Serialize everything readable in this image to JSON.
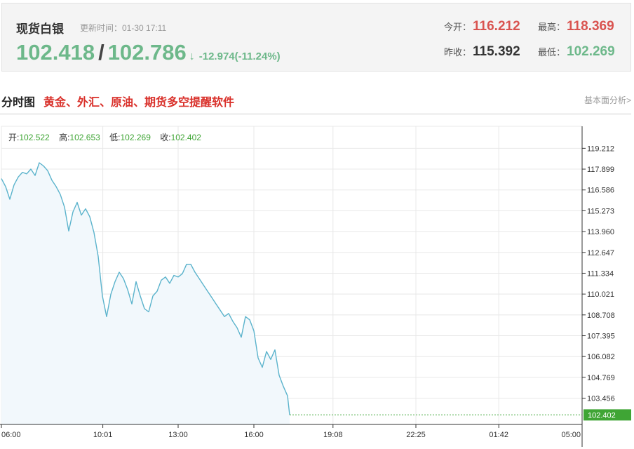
{
  "quote": {
    "name": "现货白银",
    "update_time": "更新时间：01-30 17:11",
    "bid": "102.418",
    "separator": "/",
    "ask": "102.786",
    "arrow": "↓",
    "change": "-12.974(-11.24%)",
    "open_label": "今开：",
    "open": "116.212",
    "high_label": "最高：",
    "high": "118.369",
    "prev_close_label": "昨收：",
    "prev_close": "115.392",
    "low_label": "最低：",
    "low": "102.269"
  },
  "section": {
    "title": "分时图",
    "promo": "黄金、外汇、原油、期货多空提醒软件",
    "analysis_link": "基本面分析>"
  },
  "colors": {
    "up": "#d9534f",
    "down": "#6db88a",
    "line": "#5bb3cc",
    "area": "#f2f8fc",
    "last_price_box": "#3fa535",
    "grid": "#e8e8e8"
  },
  "chart_data": {
    "type": "line",
    "ohlc": {
      "open_label": "开:",
      "open": "102.522",
      "high_label": "高:",
      "high": "102.653",
      "low_label": "低:",
      "low": "102.269",
      "close_label": "收:",
      "close": "102.402"
    },
    "x_ticks": [
      "06:00",
      "10:01",
      "13:00",
      "16:00",
      "19:08",
      "22:25",
      "01:42",
      "05:00"
    ],
    "y_ticks": [
      119.212,
      117.899,
      116.586,
      115.273,
      113.96,
      112.647,
      111.334,
      110.021,
      108.708,
      107.395,
      106.082,
      104.769,
      103.456
    ],
    "ylim": [
      101.8,
      120.6
    ],
    "last_price": "102.402",
    "grid": true,
    "series": [
      {
        "x": [
          "06:00",
          "06:10",
          "06:20",
          "06:30",
          "06:40",
          "06:50",
          "07:00",
          "07:10",
          "07:20",
          "07:30",
          "07:40",
          "07:50",
          "08:00",
          "08:10",
          "08:20",
          "08:30",
          "08:40",
          "08:50",
          "09:00",
          "09:10",
          "09:20",
          "09:30",
          "09:40",
          "09:50",
          "10:00",
          "10:10",
          "10:20",
          "10:30",
          "10:40",
          "10:50",
          "11:00",
          "11:10",
          "11:20",
          "11:30",
          "11:40",
          "11:50",
          "12:00",
          "12:10",
          "12:20",
          "12:30",
          "12:40",
          "12:50",
          "13:00",
          "13:10",
          "13:20",
          "13:30",
          "13:40",
          "13:50",
          "14:00",
          "14:10",
          "14:20",
          "14:30",
          "14:40",
          "14:50",
          "15:00",
          "15:10",
          "15:20",
          "15:30",
          "15:40",
          "15:50",
          "16:00",
          "16:10",
          "16:20",
          "16:30",
          "16:40",
          "16:50",
          "17:00",
          "17:10",
          "17:20",
          "17:25"
        ],
        "values": [
          117.3,
          116.8,
          116.0,
          116.9,
          117.4,
          117.7,
          117.6,
          117.9,
          117.5,
          118.3,
          118.1,
          117.8,
          117.2,
          116.8,
          116.3,
          115.5,
          114.0,
          115.2,
          115.8,
          115.0,
          115.4,
          114.9,
          113.9,
          112.4,
          109.9,
          108.6,
          110.0,
          110.8,
          111.4,
          111.0,
          110.3,
          109.4,
          110.8,
          109.9,
          109.1,
          108.9,
          109.9,
          110.2,
          110.9,
          111.1,
          110.7,
          111.2,
          111.1,
          111.3,
          111.9,
          111.9,
          111.4,
          111.0,
          110.6,
          110.2,
          109.8,
          109.4,
          109.0,
          108.6,
          108.8,
          108.3,
          107.9,
          107.3,
          108.6,
          108.4,
          107.7,
          106.0,
          105.4,
          106.4,
          105.9,
          106.5,
          104.9,
          104.2,
          103.6,
          102.4
        ]
      }
    ]
  }
}
